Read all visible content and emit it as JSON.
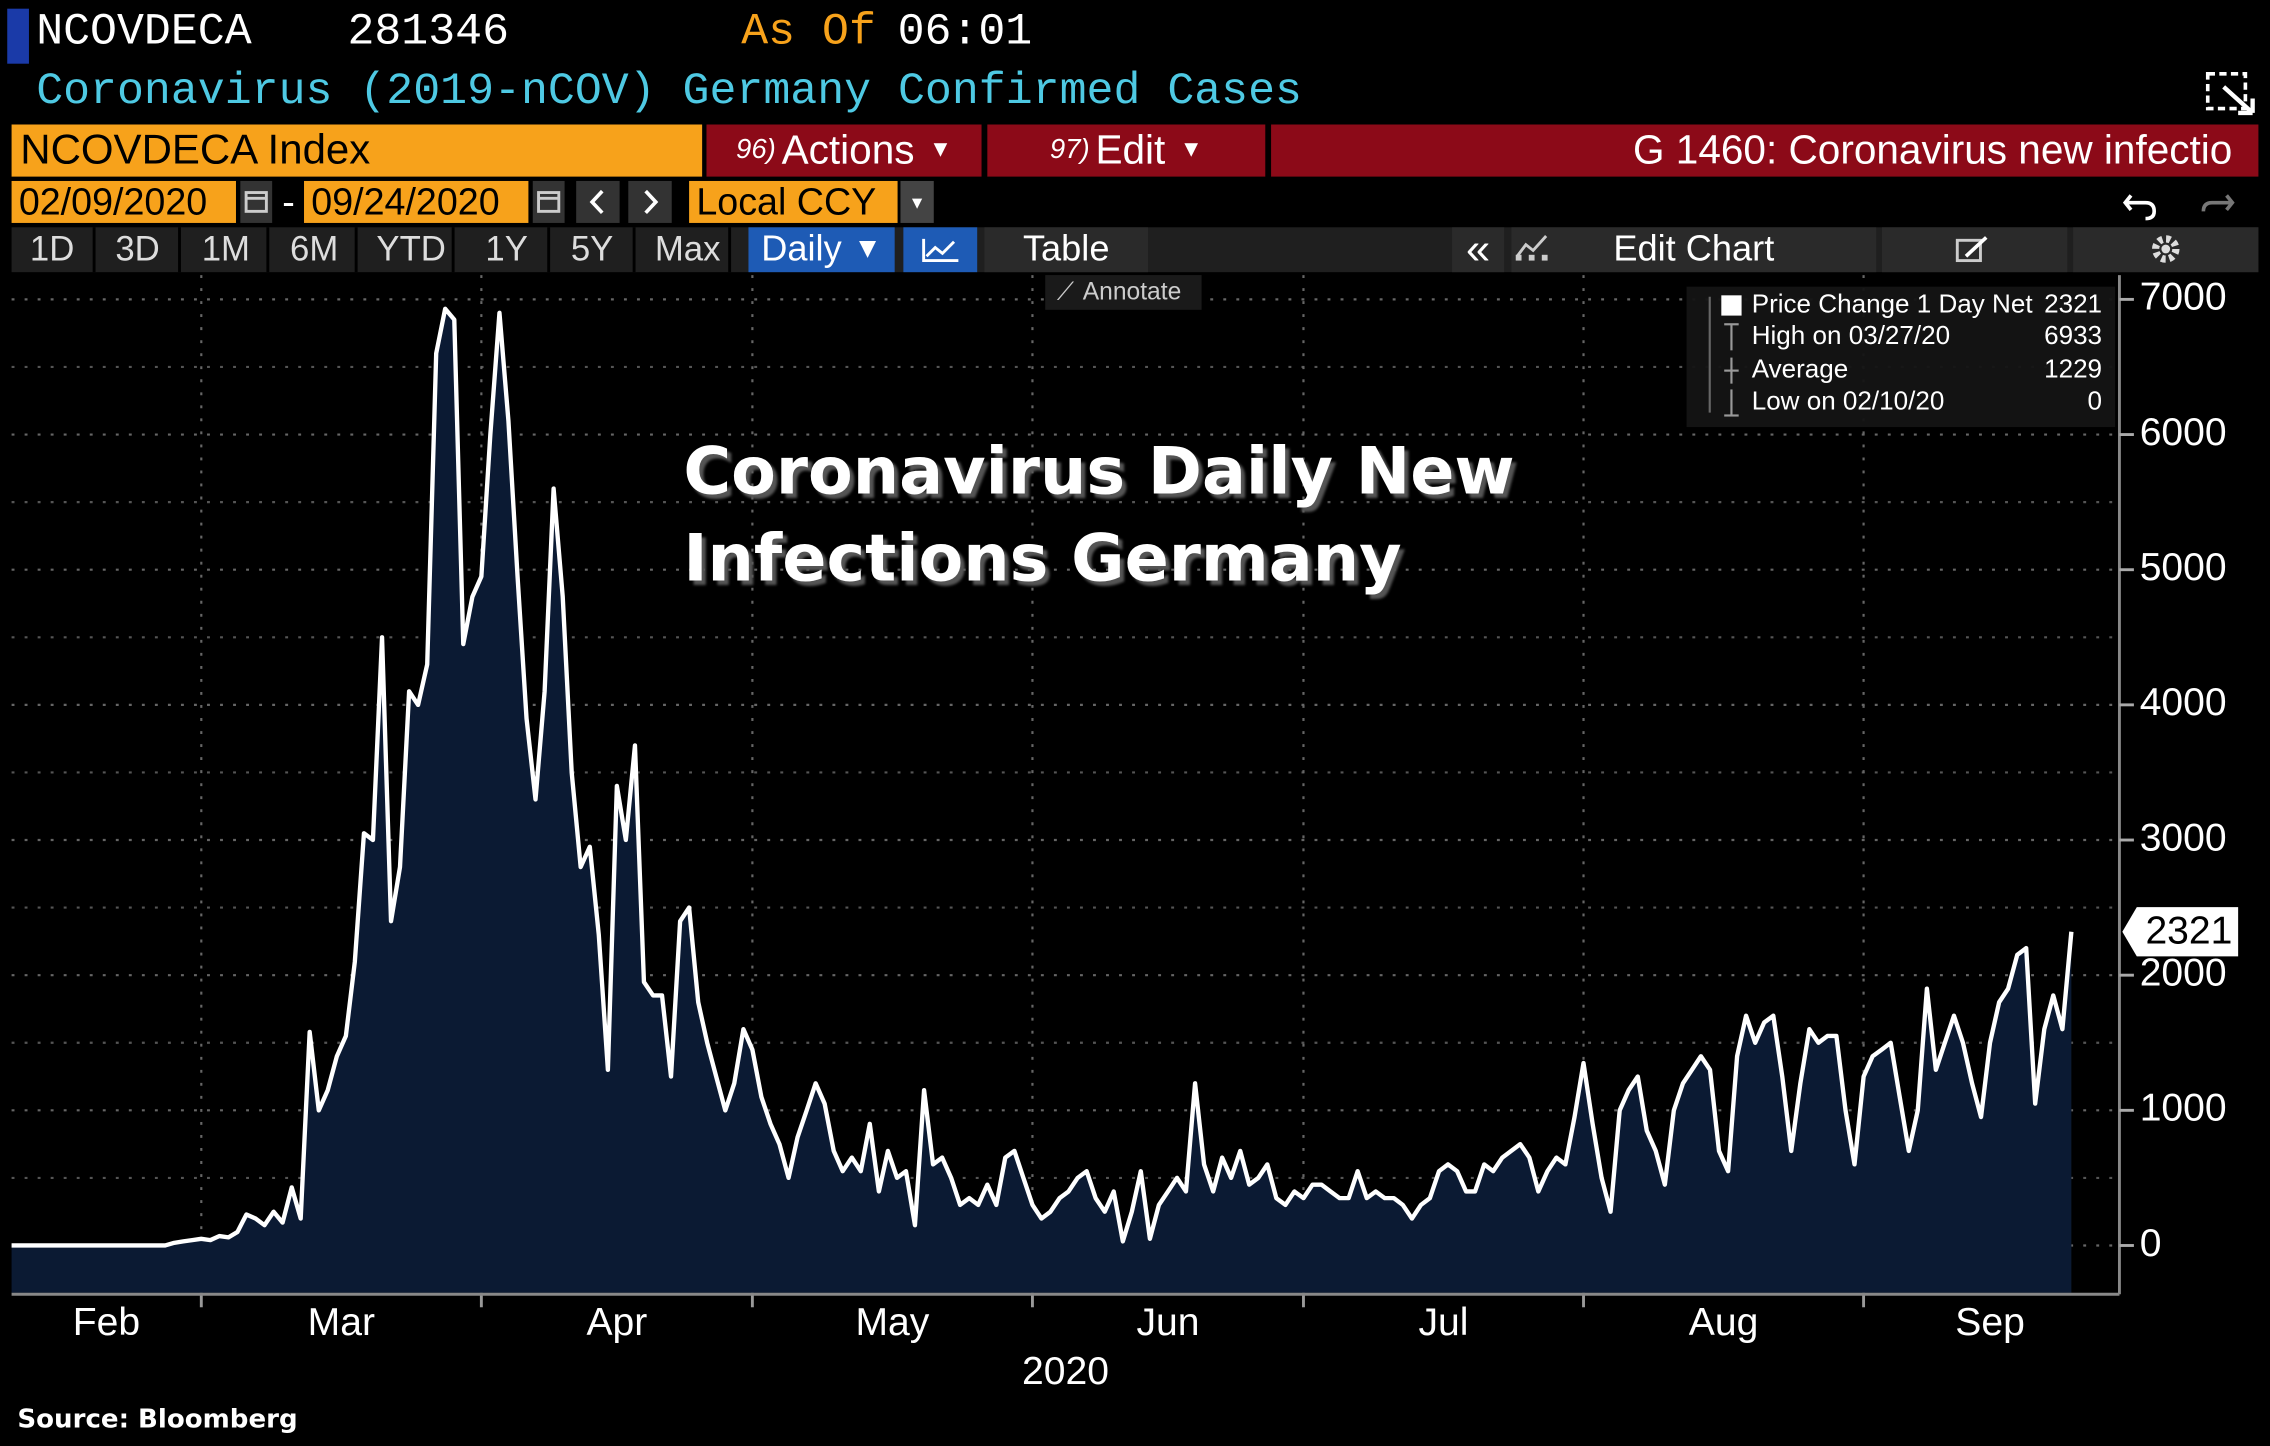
{
  "header": {
    "ticker": "NCOVDECA",
    "value": 281346,
    "as_of": "As Of",
    "time": "06:01",
    "description": "Coronavirus (2019-nCOV) Germany Confirmed Cases"
  },
  "command_bar": {
    "security": "NCOVDECA Index",
    "actions_code": "96)",
    "actions": "Actions",
    "edit_code": "97)",
    "edit": "Edit",
    "function": "G 1460: Coronavirus new infectio"
  },
  "date_range": {
    "start": "02/09/2020",
    "separator": "-",
    "end": "09/24/2020",
    "currency": "Local CCY"
  },
  "toolbar": {
    "periods": [
      "1D",
      "3D",
      "1M",
      "6M",
      "YTD",
      "1Y",
      "5Y",
      "Max"
    ],
    "frequency": "Daily",
    "table": "Table",
    "edit_chart": "Edit Chart",
    "annotate": "Annotate"
  },
  "legend": [
    {
      "label": "Price Change 1 Day Net",
      "value": 2321
    },
    {
      "label": "High on 03/27/20",
      "value": 6933
    },
    {
      "label": "Average",
      "value": 1229
    },
    {
      "label": "Low on 02/10/20",
      "value": 0
    }
  ],
  "chart_data": {
    "type": "area",
    "title": "Coronavirus Daily New Infections Germany",
    "xlabel": "2020",
    "color": "#ffffff",
    "fill": "#0b1a33",
    "x": [
      "02/09/2020",
      "02/26/2020",
      "02/27/2020",
      "02/28/2020",
      "02/29/2020",
      "03/01/2020",
      "03/02/2020",
      "03/03/2020",
      "03/04/2020",
      "03/05/2020",
      "03/06/2020",
      "03/07/2020",
      "03/08/2020",
      "03/09/2020",
      "03/10/2020",
      "03/11/2020",
      "03/12/2020",
      "03/13/2020",
      "03/14/2020",
      "03/15/2020",
      "03/16/2020",
      "03/17/2020",
      "03/18/2020",
      "03/19/2020",
      "03/20/2020",
      "03/21/2020",
      "03/22/2020",
      "03/23/2020",
      "03/24/2020",
      "03/25/2020",
      "03/26/2020",
      "03/27/2020",
      "03/28/2020",
      "03/29/2020",
      "03/30/2020",
      "03/31/2020",
      "04/01/2020",
      "04/02/2020",
      "04/03/2020",
      "04/04/2020",
      "04/05/2020",
      "04/06/2020",
      "04/07/2020",
      "04/08/2020",
      "04/09/2020",
      "04/10/2020",
      "04/11/2020",
      "04/12/2020",
      "04/13/2020",
      "04/14/2020",
      "04/15/2020",
      "04/16/2020",
      "04/17/2020",
      "04/18/2020",
      "04/19/2020",
      "04/20/2020",
      "04/21/2020",
      "04/22/2020",
      "04/23/2020",
      "04/24/2020",
      "04/25/2020",
      "04/26/2020",
      "04/27/2020",
      "04/28/2020",
      "04/29/2020",
      "04/30/2020",
      "05/01/2020",
      "05/02/2020",
      "05/03/2020",
      "05/04/2020",
      "05/05/2020",
      "05/06/2020",
      "05/07/2020",
      "05/08/2020",
      "05/09/2020",
      "05/10/2020",
      "05/11/2020",
      "05/12/2020",
      "05/13/2020",
      "05/14/2020",
      "05/15/2020",
      "05/16/2020",
      "05/17/2020",
      "05/18/2020",
      "05/19/2020",
      "05/20/2020",
      "05/21/2020",
      "05/22/2020",
      "05/23/2020",
      "05/24/2020",
      "05/25/2020",
      "05/26/2020",
      "05/27/2020",
      "05/28/2020",
      "05/29/2020",
      "05/30/2020",
      "05/31/2020",
      "06/01/2020",
      "06/02/2020",
      "06/03/2020",
      "06/04/2020",
      "06/05/2020",
      "06/06/2020",
      "06/07/2020",
      "06/08/2020",
      "06/09/2020",
      "06/10/2020",
      "06/11/2020",
      "06/12/2020",
      "06/13/2020",
      "06/14/2020",
      "06/15/2020",
      "06/16/2020",
      "06/17/2020",
      "06/18/2020",
      "06/19/2020",
      "06/20/2020",
      "06/21/2020",
      "06/22/2020",
      "06/23/2020",
      "06/24/2020",
      "06/25/2020",
      "06/26/2020",
      "06/27/2020",
      "06/28/2020",
      "06/29/2020",
      "06/30/2020",
      "07/01/2020",
      "07/02/2020",
      "07/03/2020",
      "07/04/2020",
      "07/05/2020",
      "07/06/2020",
      "07/07/2020",
      "07/08/2020",
      "07/09/2020",
      "07/10/2020",
      "07/11/2020",
      "07/12/2020",
      "07/13/2020",
      "07/14/2020",
      "07/15/2020",
      "07/16/2020",
      "07/17/2020",
      "07/18/2020",
      "07/19/2020",
      "07/20/2020",
      "07/21/2020",
      "07/22/2020",
      "07/23/2020",
      "07/24/2020",
      "07/25/2020",
      "07/26/2020",
      "07/27/2020",
      "07/28/2020",
      "07/29/2020",
      "07/30/2020",
      "07/31/2020",
      "08/01/2020",
      "08/02/2020",
      "08/03/2020",
      "08/04/2020",
      "08/05/2020",
      "08/06/2020",
      "08/07/2020",
      "08/08/2020",
      "08/09/2020",
      "08/10/2020",
      "08/11/2020",
      "08/12/2020",
      "08/13/2020",
      "08/14/2020",
      "08/15/2020",
      "08/16/2020",
      "08/17/2020",
      "08/18/2020",
      "08/19/2020",
      "08/20/2020",
      "08/21/2020",
      "08/22/2020",
      "08/23/2020",
      "08/24/2020",
      "08/25/2020",
      "08/26/2020",
      "08/27/2020",
      "08/28/2020",
      "08/29/2020",
      "08/30/2020",
      "08/31/2020",
      "09/01/2020",
      "09/02/2020",
      "09/03/2020",
      "09/04/2020",
      "09/05/2020",
      "09/06/2020",
      "09/07/2020",
      "09/08/2020",
      "09/09/2020",
      "09/10/2020",
      "09/11/2020",
      "09/12/2020",
      "09/13/2020",
      "09/14/2020",
      "09/15/2020",
      "09/16/2020",
      "09/17/2020",
      "09/18/2020",
      "09/19/2020",
      "09/20/2020",
      "09/21/2020",
      "09/22/2020",
      "09/23/2020",
      "09/24/2020"
    ],
    "values": [
      0,
      0,
      20,
      30,
      40,
      50,
      40,
      70,
      60,
      100,
      230,
      200,
      150,
      250,
      170,
      430,
      200,
      1580,
      1000,
      1150,
      1400,
      1550,
      2100,
      3050,
      3000,
      4500,
      2400,
      2800,
      4100,
      4000,
      4300,
      6600,
      6930,
      6850,
      4450,
      4800,
      4950,
      6000,
      6900,
      6100,
      4950,
      3900,
      3300,
      4100,
      5600,
      4800,
      3500,
      2800,
      2950,
      2300,
      1300,
      3400,
      3000,
      3700,
      1950,
      1850,
      1850,
      1250,
      2400,
      2500,
      1800,
      1500,
      1250,
      1000,
      1200,
      1600,
      1450,
      1100,
      900,
      750,
      500,
      800,
      1000,
      1200,
      1050,
      700,
      550,
      650,
      550,
      900,
      400,
      700,
      500,
      550,
      150,
      1150,
      600,
      650,
      500,
      300,
      350,
      300,
      450,
      300,
      650,
      700,
      500,
      300,
      200,
      250,
      350,
      400,
      500,
      550,
      350,
      250,
      400,
      30,
      250,
      550,
      50,
      300,
      400,
      500,
      400,
      1200,
      600,
      400,
      650,
      500,
      700,
      450,
      500,
      600,
      350,
      300,
      400,
      350,
      450,
      450,
      400,
      350,
      350,
      550,
      350,
      400,
      350,
      350,
      300,
      200,
      300,
      350,
      550,
      600,
      550,
      400,
      400,
      600,
      550,
      650,
      700,
      750,
      650,
      400,
      550,
      650,
      600,
      950,
      1350,
      900,
      500,
      250,
      1000,
      1150,
      1250,
      850,
      700,
      450,
      1000,
      1200,
      1300,
      1400,
      1300,
      700,
      550,
      1400,
      1700,
      1500,
      1650,
      1700,
      1250,
      700,
      1200,
      1600,
      1500,
      1550,
      1550,
      1000,
      600,
      1250,
      1400,
      1450,
      1500,
      1100,
      700,
      1000,
      1900,
      1300,
      1500,
      1700,
      1500,
      1200,
      950,
      1500,
      1800,
      1900,
      2150,
      2200,
      1050,
      1600,
      1850,
      1600,
      2321
    ],
    "xlim": [
      "02/09/2020",
      "09/29/2020"
    ],
    "xticks": [
      {
        "value": "02/01/2020",
        "label": "Feb"
      },
      {
        "value": "03/01/2020",
        "label": "Mar"
      },
      {
        "value": "04/01/2020",
        "label": "Apr"
      },
      {
        "value": "05/01/2020",
        "label": "May"
      },
      {
        "value": "06/01/2020",
        "label": "Jun"
      },
      {
        "value": "07/01/2020",
        "label": "Jul"
      },
      {
        "value": "08/01/2020",
        "label": "Aug"
      },
      {
        "value": "09/01/2020",
        "label": "Sep"
      }
    ],
    "ylim": [
      -350,
      7180
    ],
    "yticks": [
      0,
      1000,
      2000,
      3000,
      4000,
      5000,
      6000,
      7000
    ],
    "yminor": [
      500,
      1500,
      2500,
      3500,
      4500,
      5500,
      6500
    ],
    "grid": true
  },
  "footer": {
    "source": "Source: Bloomberg"
  }
}
